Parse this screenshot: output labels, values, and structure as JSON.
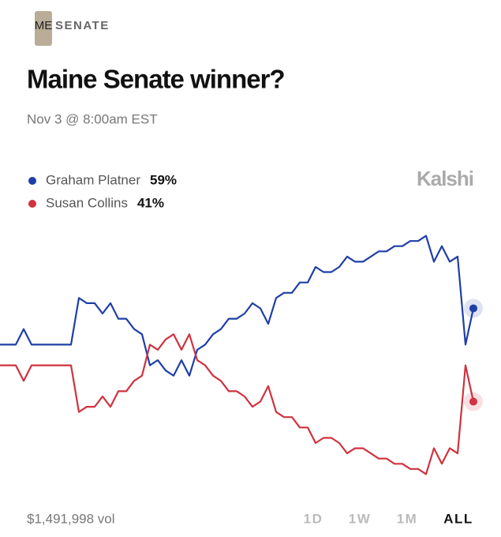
{
  "header": {
    "icon_text": "ME",
    "category": "SENATE",
    "title": "Maine Senate winner?",
    "date": "Nov 3 @ 8:00am EST",
    "brand": "Kalshi"
  },
  "chart_data": {
    "type": "line",
    "ylim": [
      25,
      75
    ],
    "grid": false,
    "legend": "top-left",
    "series": [
      {
        "name": "Graham Platner",
        "color": "#1f3fa6",
        "values": [
          52,
          52,
          52,
          55,
          52,
          52,
          52,
          52,
          52,
          52,
          61,
          60,
          60,
          58,
          60,
          57,
          57,
          55,
          54,
          48,
          49,
          47,
          46,
          49,
          46,
          51,
          52,
          54,
          55,
          57,
          57,
          58,
          60,
          59,
          56,
          61,
          62,
          62,
          64,
          64,
          67,
          66,
          66,
          67,
          69,
          68,
          68,
          69,
          70,
          70,
          71,
          71,
          72,
          72,
          73,
          68,
          71,
          68,
          69,
          52,
          59
        ],
        "value_labels": [
          null,
          null,
          null,
          null,
          null,
          null,
          null,
          null,
          null,
          null,
          null,
          null,
          null,
          null,
          null,
          null,
          null,
          null,
          null,
          null,
          null,
          null,
          null,
          null,
          null,
          null,
          null,
          null,
          null,
          null,
          null,
          null,
          null,
          null,
          null,
          null,
          null,
          null,
          null,
          null,
          null,
          null,
          null,
          null,
          null,
          null,
          null,
          null,
          null,
          null,
          null,
          null,
          null,
          null,
          null,
          null,
          null,
          null,
          null,
          null,
          "59%"
        ]
      },
      {
        "name": "Susan Collins",
        "color": "#d0323f",
        "values": [
          48,
          48,
          48,
          45,
          48,
          48,
          48,
          48,
          48,
          48,
          39,
          40,
          40,
          42,
          40,
          43,
          43,
          45,
          46,
          52,
          51,
          53,
          54,
          51,
          54,
          49,
          48,
          46,
          45,
          43,
          43,
          42,
          40,
          41,
          44,
          39,
          38,
          38,
          36,
          36,
          33,
          34,
          34,
          33,
          31,
          32,
          32,
          31,
          30,
          30,
          29,
          29,
          28,
          28,
          27,
          32,
          29,
          32,
          31,
          48,
          41
        ],
        "value_labels": [
          null,
          null,
          null,
          null,
          null,
          null,
          null,
          null,
          null,
          null,
          null,
          null,
          null,
          null,
          null,
          null,
          null,
          null,
          null,
          null,
          null,
          null,
          null,
          null,
          null,
          null,
          null,
          null,
          null,
          null,
          null,
          null,
          null,
          null,
          null,
          null,
          null,
          null,
          null,
          null,
          null,
          null,
          null,
          null,
          null,
          null,
          null,
          null,
          null,
          null,
          null,
          null,
          null,
          null,
          null,
          null,
          null,
          null,
          null,
          null,
          "41%"
        ]
      }
    ]
  },
  "footer": {
    "volume": "$1,491,998 vol",
    "ranges": [
      "1D",
      "1W",
      "1M",
      "ALL"
    ],
    "active_range": 3
  }
}
